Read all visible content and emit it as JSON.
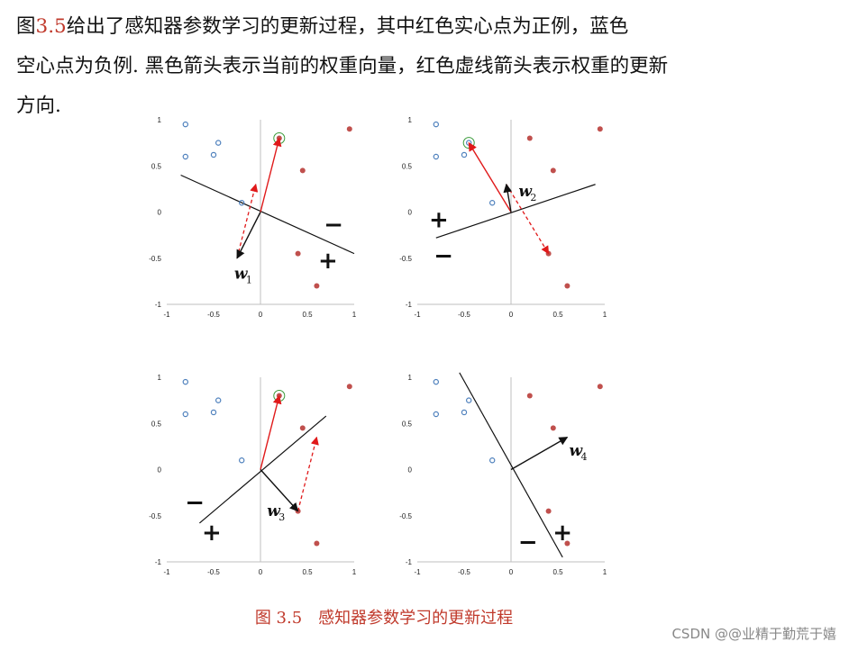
{
  "paragraph": {
    "line1_pre": "图",
    "line1_ref": "3.5",
    "line1_post": "给出了感知器参数学习的更新过程，其中红色实心点为正例，蓝色",
    "line2": "空心点为负例. 黑色箭头表示当前的权重向量，红色虚线箭头表示权重的更新",
    "line3": "方向."
  },
  "colors": {
    "positive": "#c0504d",
    "negative": "#4f81bd",
    "update": "#e0191a",
    "highlight": "#3a9b3a",
    "caption": "#c0392b"
  },
  "chart_data": [
    {
      "type": "scatter",
      "xlim": [
        -1,
        1
      ],
      "ylim": [
        -1,
        1
      ],
      "xticks": [
        "-1",
        "-0.5",
        "0",
        "0.5",
        "1"
      ],
      "yticks": [
        "1",
        "0.5",
        "0",
        "-0.5",
        "-1"
      ],
      "positives": [
        [
          0.2,
          0.8
        ],
        [
          0.95,
          0.9
        ],
        [
          0.45,
          0.45
        ],
        [
          0.4,
          -0.45
        ],
        [
          0.6,
          -0.8
        ]
      ],
      "negatives": [
        [
          -0.8,
          0.95
        ],
        [
          -0.45,
          0.75
        ],
        [
          -0.5,
          0.62
        ],
        [
          -0.8,
          0.6
        ],
        [
          -0.2,
          0.1
        ]
      ],
      "highlight": [
        0.2,
        0.8
      ],
      "boundary": [
        [
          -0.85,
          0.4
        ],
        [
          1.0,
          -0.45
        ]
      ],
      "weight": [
        [
          0,
          0
        ],
        [
          -0.25,
          -0.5
        ]
      ],
      "point_vector": [
        [
          0,
          0
        ],
        [
          0.2,
          0.8
        ]
      ],
      "update": [
        [
          -0.25,
          -0.5
        ],
        [
          -0.05,
          0.3
        ]
      ],
      "label": {
        "w": "w",
        "sub": "1",
        "at": [
          -0.28,
          -0.72
        ]
      },
      "signs": [
        {
          "text": "−",
          "at": [
            0.78,
            -0.13
          ]
        },
        {
          "text": "+",
          "at": [
            0.72,
            -0.52
          ]
        }
      ]
    },
    {
      "type": "scatter",
      "xlim": [
        -1,
        1
      ],
      "ylim": [
        -1,
        1
      ],
      "xticks": [
        "-1",
        "-0.5",
        "0",
        "0.5",
        "1"
      ],
      "yticks": [
        "1",
        "0.5",
        "0",
        "-0.5",
        "-1"
      ],
      "positives": [
        [
          0.2,
          0.8
        ],
        [
          0.95,
          0.9
        ],
        [
          0.45,
          0.45
        ],
        [
          0.4,
          -0.45
        ],
        [
          0.6,
          -0.8
        ]
      ],
      "negatives": [
        [
          -0.8,
          0.95
        ],
        [
          -0.45,
          0.75
        ],
        [
          -0.5,
          0.62
        ],
        [
          -0.8,
          0.6
        ],
        [
          -0.2,
          0.1
        ]
      ],
      "highlight": [
        -0.45,
        0.75
      ],
      "boundary": [
        [
          -0.8,
          -0.28
        ],
        [
          0.9,
          0.3
        ]
      ],
      "weight": [
        [
          0,
          0
        ],
        [
          -0.05,
          0.3
        ]
      ],
      "point_vector": [
        [
          0,
          0
        ],
        [
          -0.45,
          0.75
        ]
      ],
      "update": [
        [
          -0.05,
          0.3
        ],
        [
          0.4,
          -0.45
        ]
      ],
      "label": {
        "w": "w",
        "sub": "2",
        "at": [
          0.08,
          0.17
        ]
      },
      "signs": [
        {
          "text": "+",
          "at": [
            -0.77,
            -0.08
          ]
        },
        {
          "text": "−",
          "at": [
            -0.72,
            -0.47
          ]
        }
      ]
    },
    {
      "type": "scatter",
      "xlim": [
        -1,
        1
      ],
      "ylim": [
        -1,
        1
      ],
      "xticks": [
        "-1",
        "-0.5",
        "0",
        "0.5",
        "1"
      ],
      "yticks": [
        "1",
        "0.5",
        "0",
        "-0.5",
        "-1"
      ],
      "positives": [
        [
          0.2,
          0.8
        ],
        [
          0.95,
          0.9
        ],
        [
          0.45,
          0.45
        ],
        [
          0.4,
          -0.45
        ],
        [
          0.6,
          -0.8
        ]
      ],
      "negatives": [
        [
          -0.8,
          0.95
        ],
        [
          -0.45,
          0.75
        ],
        [
          -0.5,
          0.62
        ],
        [
          -0.8,
          0.6
        ],
        [
          -0.2,
          0.1
        ]
      ],
      "highlight": [
        0.2,
        0.8
      ],
      "boundary": [
        [
          -0.65,
          -0.58
        ],
        [
          0.7,
          0.58
        ]
      ],
      "weight": [
        [
          0,
          0
        ],
        [
          0.4,
          -0.45
        ]
      ],
      "point_vector": [
        [
          0,
          0
        ],
        [
          0.2,
          0.8
        ]
      ],
      "update": [
        [
          0.4,
          -0.45
        ],
        [
          0.6,
          0.35
        ]
      ],
      "label": {
        "w": "w",
        "sub": "3",
        "at": [
          0.07,
          -0.5
        ]
      },
      "signs": [
        {
          "text": "−",
          "at": [
            -0.7,
            -0.35
          ]
        },
        {
          "text": "+",
          "at": [
            -0.52,
            -0.68
          ]
        }
      ]
    },
    {
      "type": "scatter",
      "xlim": [
        -1,
        1
      ],
      "ylim": [
        -1,
        1
      ],
      "xticks": [
        "-1",
        "-0.5",
        "0",
        "0.5",
        "1"
      ],
      "yticks": [
        "1",
        "0.5",
        "0",
        "-0.5",
        "-1"
      ],
      "positives": [
        [
          0.2,
          0.8
        ],
        [
          0.95,
          0.9
        ],
        [
          0.45,
          0.45
        ],
        [
          0.4,
          -0.45
        ],
        [
          0.6,
          -0.8
        ]
      ],
      "negatives": [
        [
          -0.8,
          0.95
        ],
        [
          -0.45,
          0.75
        ],
        [
          -0.5,
          0.62
        ],
        [
          -0.8,
          0.6
        ],
        [
          -0.2,
          0.1
        ]
      ],
      "highlight": null,
      "boundary": [
        [
          -0.55,
          1.05
        ],
        [
          0.55,
          -0.95
        ]
      ],
      "weight": [
        [
          0,
          0
        ],
        [
          0.6,
          0.35
        ]
      ],
      "point_vector": null,
      "update": null,
      "label": {
        "w": "w",
        "sub": "4",
        "at": [
          0.62,
          0.15
        ]
      },
      "signs": [
        {
          "text": "−",
          "at": [
            0.18,
            -0.78
          ]
        },
        {
          "text": "+",
          "at": [
            0.55,
            -0.68
          ]
        }
      ]
    }
  ],
  "caption": "图 3.5　感知器参数学习的更新过程",
  "watermark": "CSDN @@业精于勤荒于嬉"
}
